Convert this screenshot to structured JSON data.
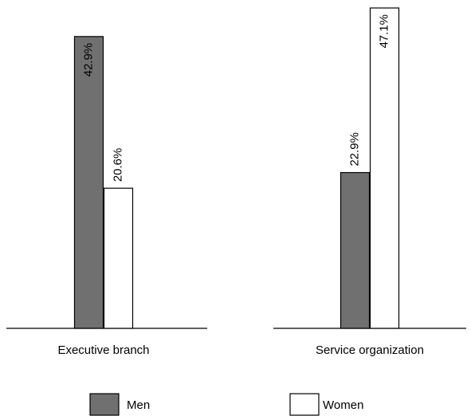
{
  "chart_data": {
    "type": "bar",
    "categories": [
      "Executive branch",
      "Service organization"
    ],
    "series": [
      {
        "name": "Men",
        "values": [
          42.9,
          22.9
        ],
        "labels": [
          "42.9%",
          "22.9%"
        ],
        "color": "#707070"
      },
      {
        "name": "Women",
        "values": [
          20.6,
          47.1
        ],
        "labels": [
          "20.6%",
          "47.1%"
        ],
        "color": "#ffffff"
      }
    ],
    "ylim": [
      0,
      47.1
    ],
    "grid": false,
    "legend_position": "bottom"
  }
}
